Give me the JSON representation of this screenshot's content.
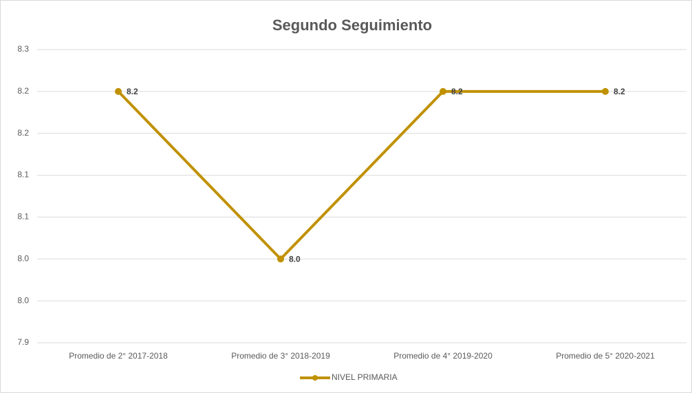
{
  "chart_data": {
    "type": "line",
    "title": "Segundo Seguimiento",
    "categories": [
      "Promedio de 2° 2017-2018",
      "Promedio de 3° 2018-2019",
      "Promedio de 4° 2019-2020",
      "Promedio de 5° 2020-2021"
    ],
    "series": [
      {
        "name": "NIVEL PRIMARIA",
        "color": "#c09100",
        "values": [
          8.2,
          8.0,
          8.2,
          8.2
        ],
        "value_labels": [
          "8.2",
          "8.0",
          "8.2",
          "8.2"
        ]
      }
    ],
    "ylim": [
      7.9,
      8.25
    ],
    "yticks": [
      7.9,
      {
        "value": 7.95,
        "label": "8.0"
      },
      {
        "value": 8.0,
        "label": "8.0"
      },
      {
        "value": 8.05,
        "label": "8.1"
      },
      8.1,
      {
        "value": 8.15,
        "label": "8.2"
      },
      8.2,
      {
        "value": 8.25,
        "label": "8.3"
      }
    ],
    "grid": true,
    "legend": "bottom"
  }
}
